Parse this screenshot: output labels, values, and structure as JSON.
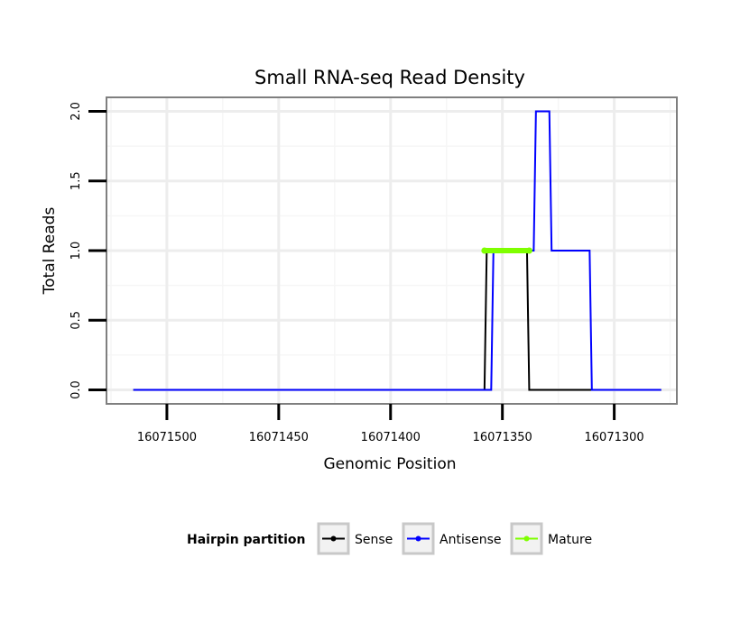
{
  "chart_data": {
    "type": "line",
    "title": "Small RNA-seq Read Density",
    "xlabel": "Genomic Position",
    "ylabel": "Total Reads",
    "x_reversed": true,
    "xlim": [
      16071527,
      16071272
    ],
    "ylim": [
      -0.1,
      2.1
    ],
    "x_ticks": [
      16071500,
      16071450,
      16071400,
      16071350,
      16071300
    ],
    "x_tick_labels": [
      "16071500",
      "16071450",
      "16071400",
      "16071350",
      "16071300"
    ],
    "y_ticks": [
      0.0,
      0.5,
      1.0,
      1.5,
      2.0
    ],
    "y_tick_labels": [
      "0.0",
      "0.5",
      "1.0",
      "1.5",
      "2.0"
    ],
    "grid": true,
    "legend": {
      "title": "Hairpin partition",
      "position": "bottom",
      "entries": [
        "Sense",
        "Antisense",
        "Mature"
      ]
    },
    "series": [
      {
        "name": "Sense",
        "color": "#000000",
        "x": [
          16071515,
          16071358,
          16071357,
          16071339,
          16071338,
          16071279
        ],
        "y": [
          0,
          0,
          1,
          1,
          0,
          0
        ]
      },
      {
        "name": "Antisense",
        "color": "#0000ff",
        "x": [
          16071515,
          16071355,
          16071354,
          16071336,
          16071335,
          16071329,
          16071328,
          16071317,
          16071316,
          16071311,
          16071310,
          16071279
        ],
        "y": [
          0,
          0,
          1,
          1,
          2,
          2,
          1,
          1,
          1,
          1,
          0,
          0
        ]
      },
      {
        "name": "Mature",
        "color": "#7fff00",
        "x": [
          16071358,
          16071338
        ],
        "y": [
          1,
          1
        ]
      }
    ]
  }
}
